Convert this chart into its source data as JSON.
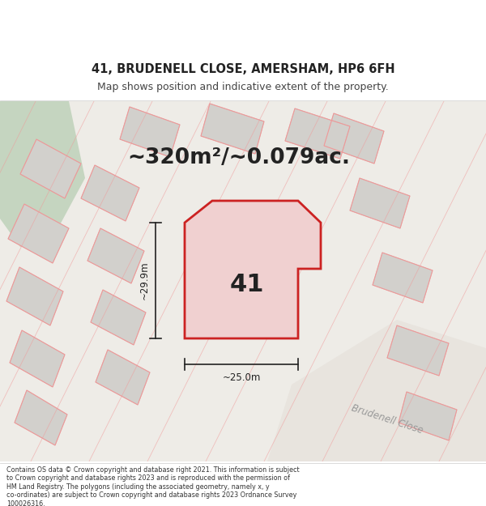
{
  "title_line1": "41, BRUDENELL CLOSE, AMERSHAM, HP6 6FH",
  "title_line2": "Map shows position and indicative extent of the property.",
  "area_text": "~320m²/~0.079ac.",
  "label_41": "41",
  "dim_vertical": "~29.9m",
  "dim_horizontal": "~25.0m",
  "footer_text": "Contains OS data © Crown copyright and database right 2021. This information is subject\nto Crown copyright and database rights 2023 and is reproduced with the permission of\nHM Land Registry. The polygons (including the associated geometry, namely x, y\nco-ordinates) are subject to Crown copyright and database rights 2023 Ordnance Survey\n100026316.",
  "map_bg": "#eeece7",
  "plot_outline_color": "#cc2222",
  "plot_fill_color": "#f0d0d0",
  "other_outline_color": "#f09898",
  "green_patch_color": "#c5d5c0",
  "gray_building_color": "#d2d0cc",
  "gray_building_edge": "#c0bebb",
  "road_label": "Brudenell Close",
  "road_color": "#e8e4de",
  "dim_line_color": "#222222",
  "text_color": "#222222",
  "footer_color": "#333333",
  "subtitle_color": "#444444"
}
